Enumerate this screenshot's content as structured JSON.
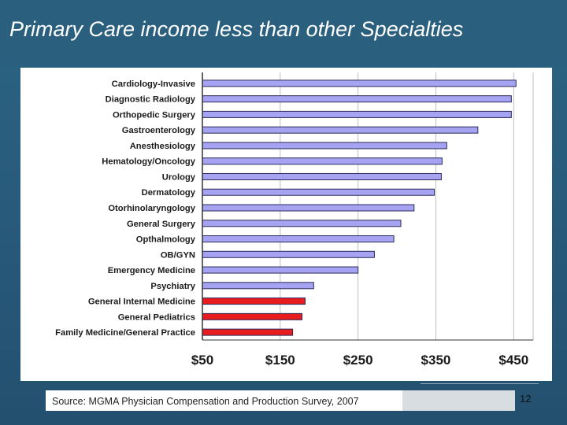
{
  "slide": {
    "title": "Primary Care income less than other Specialties",
    "source": "Source: MGMA Physician Compensation and Production Survey, 2007",
    "page_number": "12"
  },
  "colors": {
    "primary_care": "#e81c1c",
    "specialty": "#a6a4f2",
    "bar_outline": "#2a2a5a"
  },
  "chart_data": {
    "type": "bar",
    "orientation": "horizontal",
    "title": "",
    "xlabel": "",
    "ylabel": "",
    "xlim": [
      50,
      475
    ],
    "tick_values": [
      50,
      150,
      250,
      350,
      450
    ],
    "tick_labels": [
      "$50",
      "$150",
      "$250",
      "$350",
      "$450"
    ],
    "categories": [
      "Cardiology-Invasive",
      "Diagnostic Radiology",
      "Orthopedic Surgery",
      "Gastroenterology",
      "Anesthesiology",
      "Hematology/Oncology",
      "Urology",
      "Dermatology",
      "Otorhinolaryngology",
      "General Surgery",
      "Opthalmology",
      "OB/GYN",
      "Emergency Medicine",
      "Psychiatry",
      "General Internal Medicine",
      "General Pediatrics",
      "Family Medicine/General Practice"
    ],
    "values": [
      453,
      447,
      447,
      404,
      364,
      358,
      357,
      348,
      322,
      305,
      296,
      271,
      250,
      193,
      182,
      178,
      166
    ],
    "highlight": [
      false,
      false,
      false,
      false,
      false,
      false,
      false,
      false,
      false,
      false,
      false,
      false,
      false,
      false,
      true,
      true,
      true
    ],
    "grid": "vertical lines at tick values"
  }
}
